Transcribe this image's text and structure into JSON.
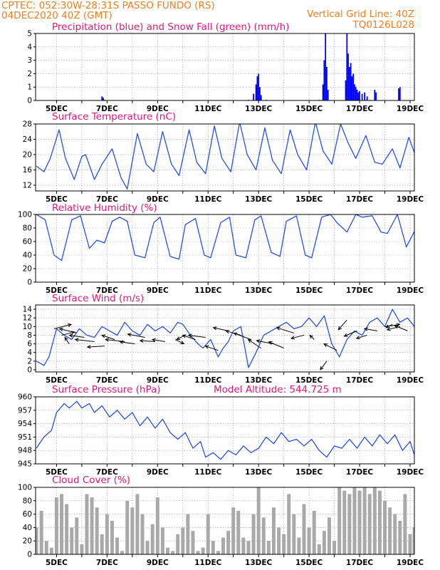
{
  "header": {
    "station": "CPTEC:  052:30W-28:31S  PASSO FUNDO (RS)",
    "run": "04DEC2020 40Z (GMT)",
    "grid_note": "Vertical Grid Line: 40Z",
    "code": "TQ0126L028"
  },
  "colors": {
    "header": "#f08020",
    "title": "#e0197a",
    "precip": "#0000ff",
    "snow": "#00a000",
    "line": "#2a4fe8",
    "cloud": "#a9a9a9",
    "wind_arrow": "#000000"
  },
  "x_axis": {
    "labels": [
      "5DEC",
      "7DEC",
      "9DEC",
      "11DEC",
      "13DEC",
      "15DEC",
      "17DEC",
      "19DEC"
    ],
    "label_days": [
      5,
      7,
      9,
      11,
      13,
      15,
      17,
      19
    ],
    "range_days": [
      4.17,
      19.17
    ]
  },
  "chart_data": [
    {
      "id": "precipitation",
      "type": "bar",
      "title": "Precipitation (blue) and Snow Fall (green) (mm/h)",
      "ylim": [
        0,
        5
      ],
      "yticks": [
        "0",
        "1",
        "2",
        "3",
        "4",
        "5"
      ],
      "grid": true,
      "series": [
        {
          "name": "blue",
          "points": [
            [
              6.8,
              0.3
            ],
            [
              6.85,
              0.2
            ],
            [
              12.8,
              0.5
            ],
            [
              12.9,
              1.2
            ],
            [
              12.95,
              1.8
            ],
            [
              13.0,
              2.0
            ],
            [
              13.05,
              1.0
            ],
            [
              13.1,
              0.4
            ],
            [
              15.55,
              1.2
            ],
            [
              15.6,
              3.0
            ],
            [
              15.65,
              5.0
            ],
            [
              15.7,
              2.5
            ],
            [
              15.75,
              0.8
            ],
            [
              16.45,
              1.5
            ],
            [
              16.5,
              5.0
            ],
            [
              16.55,
              3.5
            ],
            [
              16.6,
              2.5
            ],
            [
              16.65,
              2.8
            ],
            [
              16.7,
              1.8
            ],
            [
              16.75,
              2.0
            ],
            [
              16.8,
              1.2
            ],
            [
              16.85,
              1.0
            ],
            [
              16.9,
              0.8
            ],
            [
              16.95,
              0.6
            ],
            [
              17.0,
              0.7
            ],
            [
              17.1,
              0.5
            ],
            [
              17.2,
              0.6
            ],
            [
              17.3,
              0.3
            ],
            [
              17.6,
              0.8
            ],
            [
              17.65,
              0.6
            ],
            [
              18.55,
              0.9
            ],
            [
              18.6,
              1.0
            ]
          ]
        },
        {
          "name": "green",
          "points": [
            [
              5.0,
              0.05
            ],
            [
              6.9,
              0.05
            ],
            [
              12.6,
              0.05
            ],
            [
              13.3,
              0.05
            ],
            [
              15.4,
              0.05
            ],
            [
              17.4,
              0.05
            ]
          ]
        }
      ]
    },
    {
      "id": "temperature",
      "type": "line",
      "title": "Surface Temperature (nC)",
      "ylim": [
        10.5,
        28
      ],
      "yticks": [
        "12",
        "16",
        "20",
        "24",
        "28"
      ],
      "grid": true,
      "x": [
        4.2,
        4.5,
        4.75,
        5.1,
        5.35,
        5.7,
        6.0,
        6.15,
        6.5,
        6.8,
        7.2,
        7.55,
        7.8,
        8.2,
        8.55,
        8.85,
        9.2,
        9.55,
        9.85,
        10.25,
        10.55,
        10.9,
        11.25,
        11.55,
        11.9,
        12.25,
        12.55,
        12.9,
        13.25,
        13.55,
        13.9,
        14.25,
        14.55,
        14.9,
        15.25,
        15.55,
        15.9,
        16.25,
        16.55,
        16.85,
        17.25,
        17.6,
        17.9,
        18.3,
        18.6,
        18.95,
        19.17
      ],
      "y": [
        17,
        15.5,
        19,
        26.5,
        19,
        13.5,
        19.5,
        20,
        13.5,
        17.5,
        21.5,
        14,
        11,
        25.5,
        17.5,
        15.5,
        26,
        17.5,
        14.5,
        26.5,
        18,
        15,
        27.5,
        19,
        15.5,
        28.5,
        20,
        16,
        27,
        18.5,
        15,
        26.5,
        20,
        16,
        28.5,
        21,
        17.5,
        28,
        23,
        19,
        25,
        18,
        17.5,
        21.5,
        16.5,
        24.5,
        20.5
      ]
    },
    {
      "id": "humidity",
      "type": "line",
      "title": "Relative Humidity (%)",
      "ylim": [
        0,
        100
      ],
      "yticks": [
        "0",
        "20",
        "40",
        "60",
        "80",
        "100"
      ],
      "grid": true,
      "x": [
        4.2,
        4.55,
        4.9,
        5.2,
        5.6,
        5.95,
        6.3,
        6.6,
        6.9,
        7.2,
        7.5,
        7.8,
        8.1,
        8.5,
        8.85,
        9.1,
        9.5,
        9.85,
        10.1,
        10.5,
        10.85,
        11.1,
        11.5,
        11.85,
        12.1,
        12.5,
        12.85,
        13.1,
        13.5,
        13.85,
        14.1,
        14.5,
        14.85,
        15.1,
        15.5,
        15.85,
        16.1,
        16.5,
        16.85,
        17.1,
        17.5,
        17.85,
        18.1,
        18.5,
        18.85,
        19.17
      ],
      "y": [
        100,
        92,
        40,
        32,
        92,
        98,
        50,
        62,
        58,
        90,
        96,
        90,
        40,
        36,
        88,
        96,
        38,
        34,
        85,
        94,
        40,
        36,
        88,
        96,
        40,
        36,
        92,
        98,
        44,
        38,
        90,
        98,
        40,
        36,
        96,
        100,
        88,
        74,
        100,
        96,
        98,
        74,
        72,
        100,
        52,
        75
      ]
    },
    {
      "id": "wind",
      "type": "line",
      "title": "Surface Wind (m/s)",
      "ylim": [
        -0.5,
        15
      ],
      "yticks": [
        "0",
        "2",
        "4",
        "6",
        "8",
        "10",
        "12",
        "14"
      ],
      "grid": true,
      "x": [
        4.2,
        4.5,
        4.7,
        5.0,
        5.3,
        5.6,
        5.9,
        6.2,
        6.5,
        6.8,
        7.1,
        7.4,
        7.7,
        8.0,
        8.3,
        8.6,
        8.9,
        9.2,
        9.5,
        9.8,
        10.0,
        10.3,
        10.6,
        10.8,
        11.1,
        11.4,
        11.6,
        11.8,
        12.0,
        12.3,
        12.6,
        12.9,
        13.2,
        13.5,
        13.8,
        14.1,
        14.4,
        14.7,
        15.0,
        15.3,
        15.6,
        15.9,
        16.2,
        16.5,
        16.8,
        17.1,
        17.4,
        17.7,
        18.0,
        18.3,
        18.6,
        18.9,
        19.17
      ],
      "y": [
        2,
        1,
        3,
        9.5,
        8,
        7,
        9.5,
        8,
        7.5,
        10,
        9,
        8,
        11,
        9,
        8,
        10.5,
        9,
        10,
        8.5,
        11,
        10.5,
        8,
        6,
        5,
        7,
        3,
        5,
        6.5,
        9,
        10,
        0.5,
        4,
        8,
        9,
        10,
        11,
        9.5,
        10,
        12,
        10,
        12.5,
        6,
        3,
        7,
        9,
        8,
        11,
        12,
        10,
        14,
        11,
        12,
        10
      ],
      "arrows": [
        [
          4.9,
          9.5,
          0.4,
          0.2
        ],
        [
          5.2,
          8,
          0.3,
          0.15
        ],
        [
          5.5,
          6,
          -0.1,
          0.3
        ],
        [
          5.8,
          8.5,
          -0.4,
          0.2
        ],
        [
          6.1,
          7.5,
          -0.35,
          0.1
        ],
        [
          6.5,
          6.5,
          -0.45,
          0.1
        ],
        [
          6.9,
          5.5,
          -0.4,
          -0.05
        ],
        [
          7.3,
          7,
          -0.3,
          0.2
        ],
        [
          7.7,
          6.5,
          -0.45,
          0.1
        ],
        [
          8.1,
          6,
          -0.35,
          0.1
        ],
        [
          8.5,
          7.5,
          -0.4,
          0.15
        ],
        [
          8.9,
          6.5,
          -0.35,
          0.05
        ],
        [
          9.3,
          6.5,
          -0.3,
          0.1
        ],
        [
          9.7,
          7,
          0.2,
          -0.2
        ],
        [
          10.1,
          8,
          -0.2,
          -0.2
        ],
        [
          10.5,
          7,
          -0.3,
          0.2
        ],
        [
          10.9,
          7.5,
          -0.4,
          0.1
        ],
        [
          11.4,
          4.5,
          -0.3,
          0.2
        ],
        [
          11.8,
          9,
          -0.35,
          0.15
        ],
        [
          12.3,
          8,
          -0.35,
          0.2
        ],
        [
          12.7,
          7,
          -0.4,
          0.3
        ],
        [
          13.1,
          5,
          -0.3,
          0.4
        ],
        [
          13.6,
          6,
          -0.4,
          0.15
        ],
        [
          14.0,
          5,
          -0.35,
          0.3
        ],
        [
          14.4,
          8.5,
          -0.4,
          0.25
        ],
        [
          14.8,
          8,
          -0.3,
          -0.15
        ],
        [
          15.2,
          7,
          -0.1,
          0.2
        ],
        [
          15.7,
          2,
          -0.15,
          -0.4
        ],
        [
          16.1,
          4.5,
          -0.3,
          0.3
        ],
        [
          16.5,
          11.5,
          -0.2,
          -0.45
        ],
        [
          16.9,
          9,
          -0.3,
          -0.25
        ],
        [
          17.3,
          8,
          -0.25,
          -0.15
        ],
        [
          17.7,
          9,
          -0.3,
          0.1
        ],
        [
          18.0,
          10,
          0.35,
          0.1
        ],
        [
          18.3,
          10.5,
          -0.15,
          -0.15
        ],
        [
          18.6,
          10,
          -0.3,
          -0.15
        ],
        [
          18.9,
          9,
          -0.3,
          0.25
        ]
      ]
    },
    {
      "id": "pressure",
      "type": "line",
      "title": "Surface Pressure (hPa)",
      "ylim": [
        945,
        960
      ],
      "yticks": [
        "945",
        "948",
        "951",
        "954",
        "957",
        "960"
      ],
      "grid": true,
      "x": [
        4.2,
        4.5,
        4.8,
        5.0,
        5.3,
        5.5,
        5.8,
        6.0,
        6.3,
        6.5,
        6.8,
        7.1,
        7.4,
        7.7,
        8.0,
        8.3,
        8.6,
        8.9,
        9.2,
        9.5,
        9.8,
        10.1,
        10.4,
        10.7,
        10.9,
        11.2,
        11.5,
        11.8,
        12.1,
        12.4,
        12.7,
        13.0,
        13.3,
        13.6,
        13.9,
        14.2,
        14.5,
        14.8,
        15.1,
        15.4,
        15.7,
        16.0,
        16.3,
        16.6,
        16.9,
        17.2,
        17.5,
        17.8,
        18.1,
        18.4,
        18.7,
        19.0,
        19.17
      ],
      "y": [
        948.5,
        951,
        952.5,
        956.5,
        958.5,
        957.5,
        959,
        957.5,
        958.5,
        956.5,
        958,
        955.5,
        957,
        955,
        956.5,
        953.5,
        955.5,
        953,
        955,
        952,
        950.5,
        952,
        948.5,
        950,
        946.5,
        947.5,
        946,
        948,
        947,
        949,
        947.5,
        948.5,
        951,
        949.5,
        952,
        950,
        950.5,
        949,
        950.5,
        948,
        946.5,
        949,
        948.5,
        950.5,
        948.5,
        951,
        949,
        951.5,
        949.5,
        951.5,
        948,
        950,
        947
      ]
    },
    {
      "id": "cloud",
      "type": "area",
      "title": "Cloud Cover (%)",
      "ylim": [
        0,
        100
      ],
      "yticks": [
        "0",
        "20",
        "40",
        "60",
        "80",
        "100"
      ],
      "grid": true,
      "x": [
        4.2,
        4.4,
        4.6,
        4.8,
        5.0,
        5.2,
        5.4,
        5.6,
        5.8,
        6.0,
        6.2,
        6.4,
        6.6,
        6.8,
        7.0,
        7.2,
        7.4,
        7.6,
        7.8,
        8.0,
        8.2,
        8.4,
        8.6,
        8.8,
        9.0,
        9.2,
        9.4,
        9.6,
        9.8,
        10.0,
        10.2,
        10.4,
        10.6,
        10.8,
        11.0,
        11.2,
        11.4,
        11.6,
        11.8,
        12.0,
        12.2,
        12.4,
        12.6,
        12.8,
        13.0,
        13.2,
        13.4,
        13.6,
        13.8,
        14.0,
        14.2,
        14.4,
        14.6,
        14.8,
        15.0,
        15.2,
        15.4,
        15.6,
        15.8,
        16.0,
        16.2,
        16.4,
        16.6,
        16.8,
        17.0,
        17.2,
        17.4,
        17.6,
        17.8,
        18.0,
        18.2,
        18.4,
        18.6,
        18.8,
        19.0,
        19.17
      ],
      "y": [
        40,
        65,
        20,
        10,
        85,
        90,
        75,
        40,
        55,
        15,
        90,
        85,
        70,
        30,
        60,
        50,
        25,
        5,
        80,
        70,
        90,
        60,
        20,
        45,
        85,
        40,
        10,
        5,
        30,
        40,
        60,
        35,
        5,
        10,
        60,
        20,
        5,
        25,
        35,
        70,
        65,
        25,
        20,
        60,
        100,
        55,
        20,
        70,
        40,
        30,
        90,
        60,
        25,
        75,
        40,
        65,
        15,
        35,
        55,
        20,
        100,
        95,
        90,
        100,
        95,
        100,
        90,
        100,
        95,
        80,
        70,
        60,
        50,
        90,
        30,
        40
      ]
    }
  ]
}
